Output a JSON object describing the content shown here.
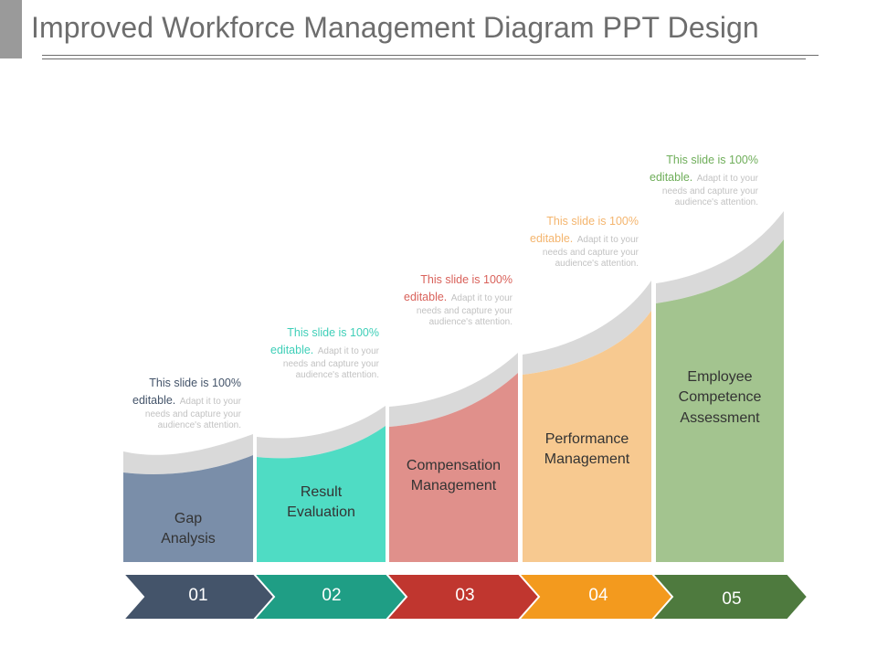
{
  "title": "Improved Workforce Management Diagram PPT Design",
  "steps": [
    {
      "number": "01",
      "label_line1": "Gap",
      "label_line2": "Analysis",
      "label_line3": "",
      "note_lead": "This slide is 100%",
      "note_lead2": "editable.",
      "note_rest1": "Adapt it to your",
      "note_rest2": "needs and capture your",
      "note_rest3": "audience's attention.",
      "bar_color": "#7a8ea9",
      "arrow_color": "#44546a",
      "note_color": "#44546a"
    },
    {
      "number": "02",
      "label_line1": "Result",
      "label_line2": "Evaluation",
      "label_line3": "",
      "note_lead": "This slide is 100%",
      "note_lead2": "editable.",
      "note_rest1": "Adapt it to your",
      "note_rest2": "needs and capture your",
      "note_rest3": "audience's attention.",
      "bar_color": "#4fdcc4",
      "arrow_color": "#1f9e85",
      "note_color": "#3fcfb8"
    },
    {
      "number": "03",
      "label_line1": "Compensation",
      "label_line2": "Management",
      "label_line3": "",
      "note_lead": "This slide is 100%",
      "note_lead2": "editable.",
      "note_rest1": "Adapt it to your",
      "note_rest2": "needs and capture your",
      "note_rest3": "audience's attention.",
      "bar_color": "#e0908b",
      "arrow_color": "#c0362f",
      "note_color": "#d9625b"
    },
    {
      "number": "04",
      "label_line1": "Performance",
      "label_line2": "Management",
      "label_line3": "",
      "note_lead": "This slide is 100%",
      "note_lead2": "editable.",
      "note_rest1": "Adapt it to your",
      "note_rest2": "needs and capture your",
      "note_rest3": "audience's attention.",
      "bar_color": "#f7c990",
      "arrow_color": "#f39a1e",
      "note_color": "#f4b56e"
    },
    {
      "number": "05",
      "label_line1": "Employee",
      "label_line2": "Competence",
      "label_line3": "Assessment",
      "note_lead": "This slide is 100%",
      "note_lead2": "editable.",
      "note_rest1": "Adapt it to your",
      "note_rest2": "needs and capture your",
      "note_rest3": "audience's attention.",
      "bar_color": "#a3c48f",
      "arrow_color": "#4e7a3e",
      "note_color": "#6fae5a"
    }
  ],
  "cap_color": "#d9d9d9"
}
